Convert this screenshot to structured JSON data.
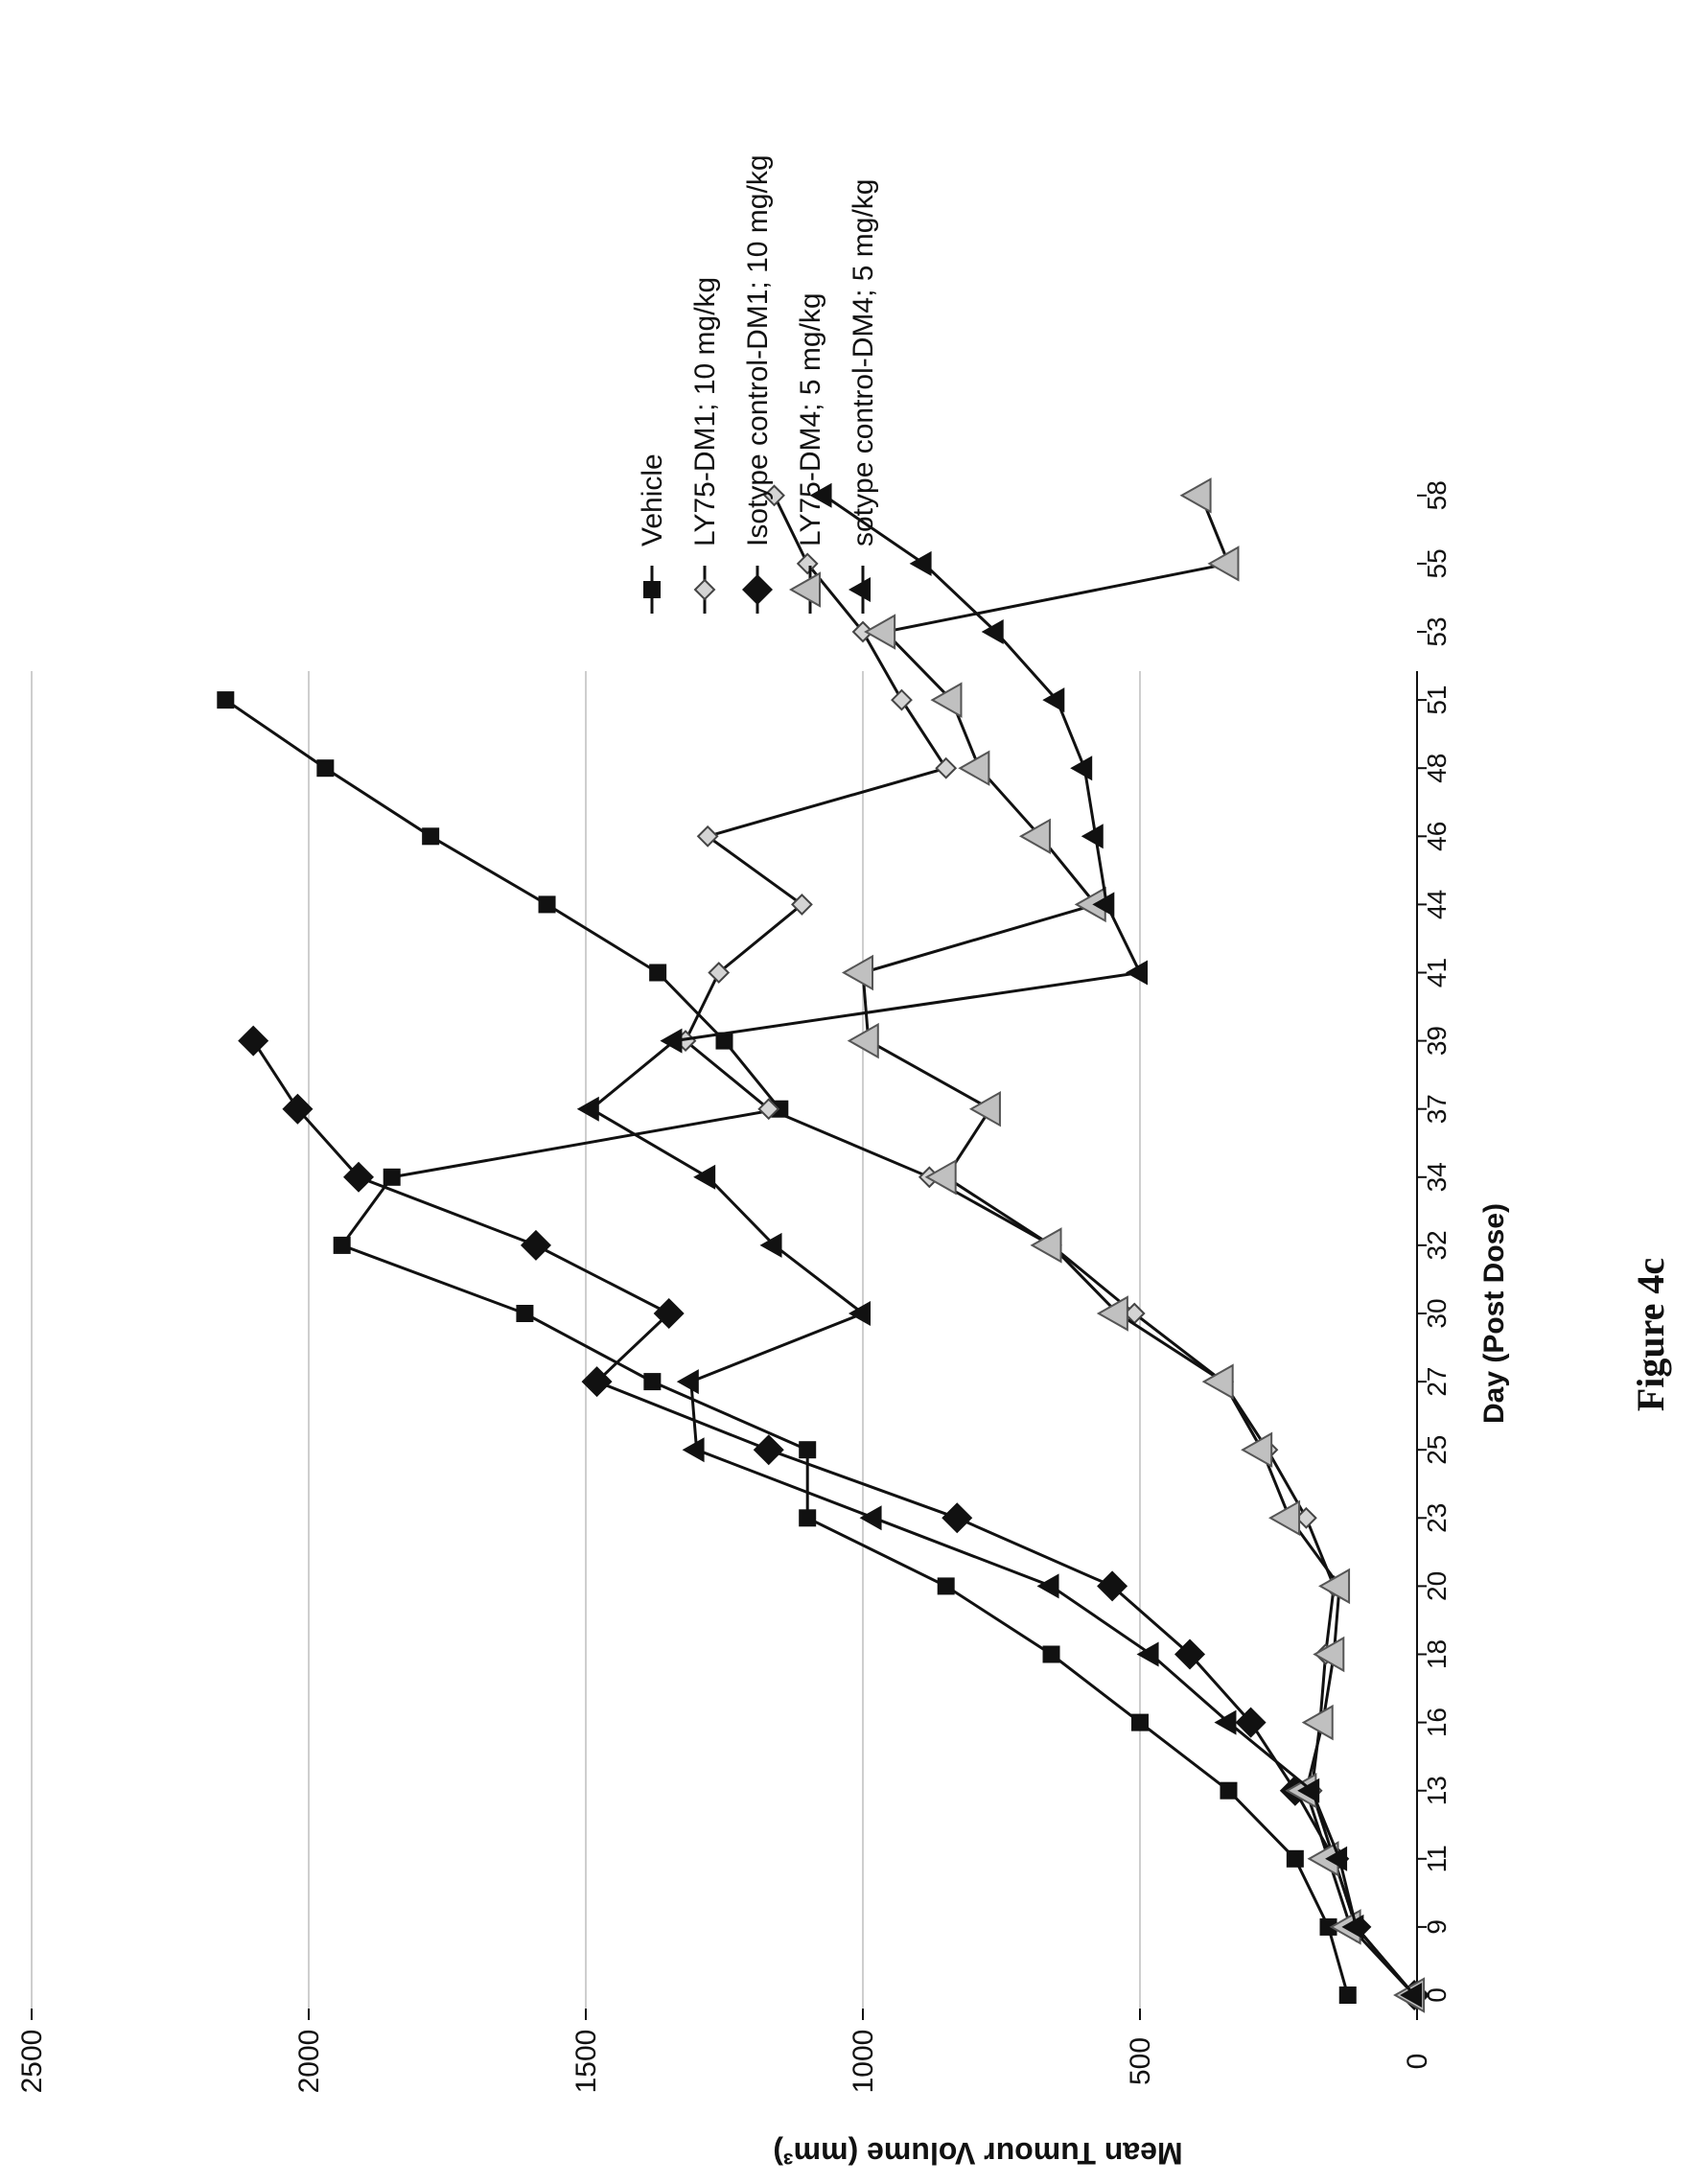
{
  "chart_data": {
    "type": "line",
    "xlabel": "Day (Post Dose)",
    "ylabel": "Mean Tumour Volume (mm³)",
    "ylim": [
      0,
      2500
    ],
    "yticks": [
      0,
      500,
      1000,
      1500,
      2000,
      2500
    ],
    "xtick_labels": [
      "0",
      "9",
      "11",
      "13",
      "16",
      "18",
      "20",
      "23",
      "25",
      "27",
      "30",
      "32",
      "34",
      "37",
      "39",
      "41",
      "44",
      "46",
      "48",
      "51",
      "53",
      "55",
      "58"
    ],
    "grid": "horizontal",
    "legend_position": "right",
    "orientation": "rotated 90° clockwise",
    "caption": "Figure 4c",
    "series": [
      {
        "name": "Vehicle",
        "marker": "square",
        "color": "#111111",
        "x": [
          0,
          1,
          2,
          3,
          4,
          5,
          6,
          7,
          8,
          9,
          10,
          11,
          12,
          13,
          14,
          15,
          16,
          17,
          18,
          19
        ],
        "y": [
          125,
          160,
          220,
          340,
          500,
          660,
          850,
          1100,
          1100,
          1380,
          1610,
          1940,
          1850,
          1150,
          1250,
          1370,
          1570,
          1780,
          1970,
          2150
        ]
      },
      {
        "name": "LY75-DM1; 10 mg/kg",
        "marker": "diamond-open",
        "color": "#777777",
        "x": [
          0,
          1,
          2,
          3,
          4,
          5,
          6,
          7,
          8,
          9,
          10,
          11,
          12,
          13,
          14,
          15,
          16,
          17,
          18,
          19,
          20,
          21,
          22
        ],
        "y": [
          5,
          110,
          150,
          190,
          175,
          165,
          150,
          200,
          270,
          350,
          510,
          660,
          880,
          1170,
          1320,
          1260,
          1110,
          1280,
          850,
          930,
          1000,
          1100,
          1160
        ]
      },
      {
        "name": "Isotype control-DM1; 10 mg/kg",
        "marker": "diamond",
        "color": "#111111",
        "x": [
          0,
          1,
          2,
          3,
          4,
          5,
          6,
          7,
          8,
          9,
          10,
          11,
          12,
          13,
          14
        ],
        "y": [
          5,
          110,
          150,
          220,
          300,
          410,
          550,
          830,
          1170,
          1480,
          1350,
          1590,
          1910,
          2020,
          2100
        ]
      },
      {
        "name": "LY75-DM4; 5 mg/kg",
        "marker": "triangle-gray",
        "color": "#888888",
        "x": [
          0,
          1,
          2,
          3,
          4,
          5,
          6,
          7,
          8,
          9,
          10,
          11,
          12,
          13,
          14,
          15,
          16,
          17,
          18,
          19,
          20,
          21,
          22
        ],
        "y": [
          5,
          120,
          160,
          200,
          170,
          150,
          140,
          230,
          280,
          350,
          540,
          660,
          850,
          770,
          990,
          1000,
          580,
          680,
          790,
          840,
          960,
          340,
          390
        ]
      },
      {
        "name": "sotype control-DM4; 5 mg/kg",
        "marker": "triangle",
        "color": "#111111",
        "x": [
          0,
          1,
          2,
          3,
          4,
          5,
          6,
          7,
          8,
          9,
          10,
          11,
          12,
          13,
          14,
          15,
          16,
          17,
          18,
          19,
          20,
          21,
          22
        ],
        "y": [
          5,
          110,
          140,
          190,
          340,
          480,
          660,
          980,
          1300,
          1310,
          1000,
          1160,
          1280,
          1490,
          1340,
          500,
          560,
          580,
          600,
          650,
          760,
          890,
          1070
        ]
      }
    ]
  }
}
